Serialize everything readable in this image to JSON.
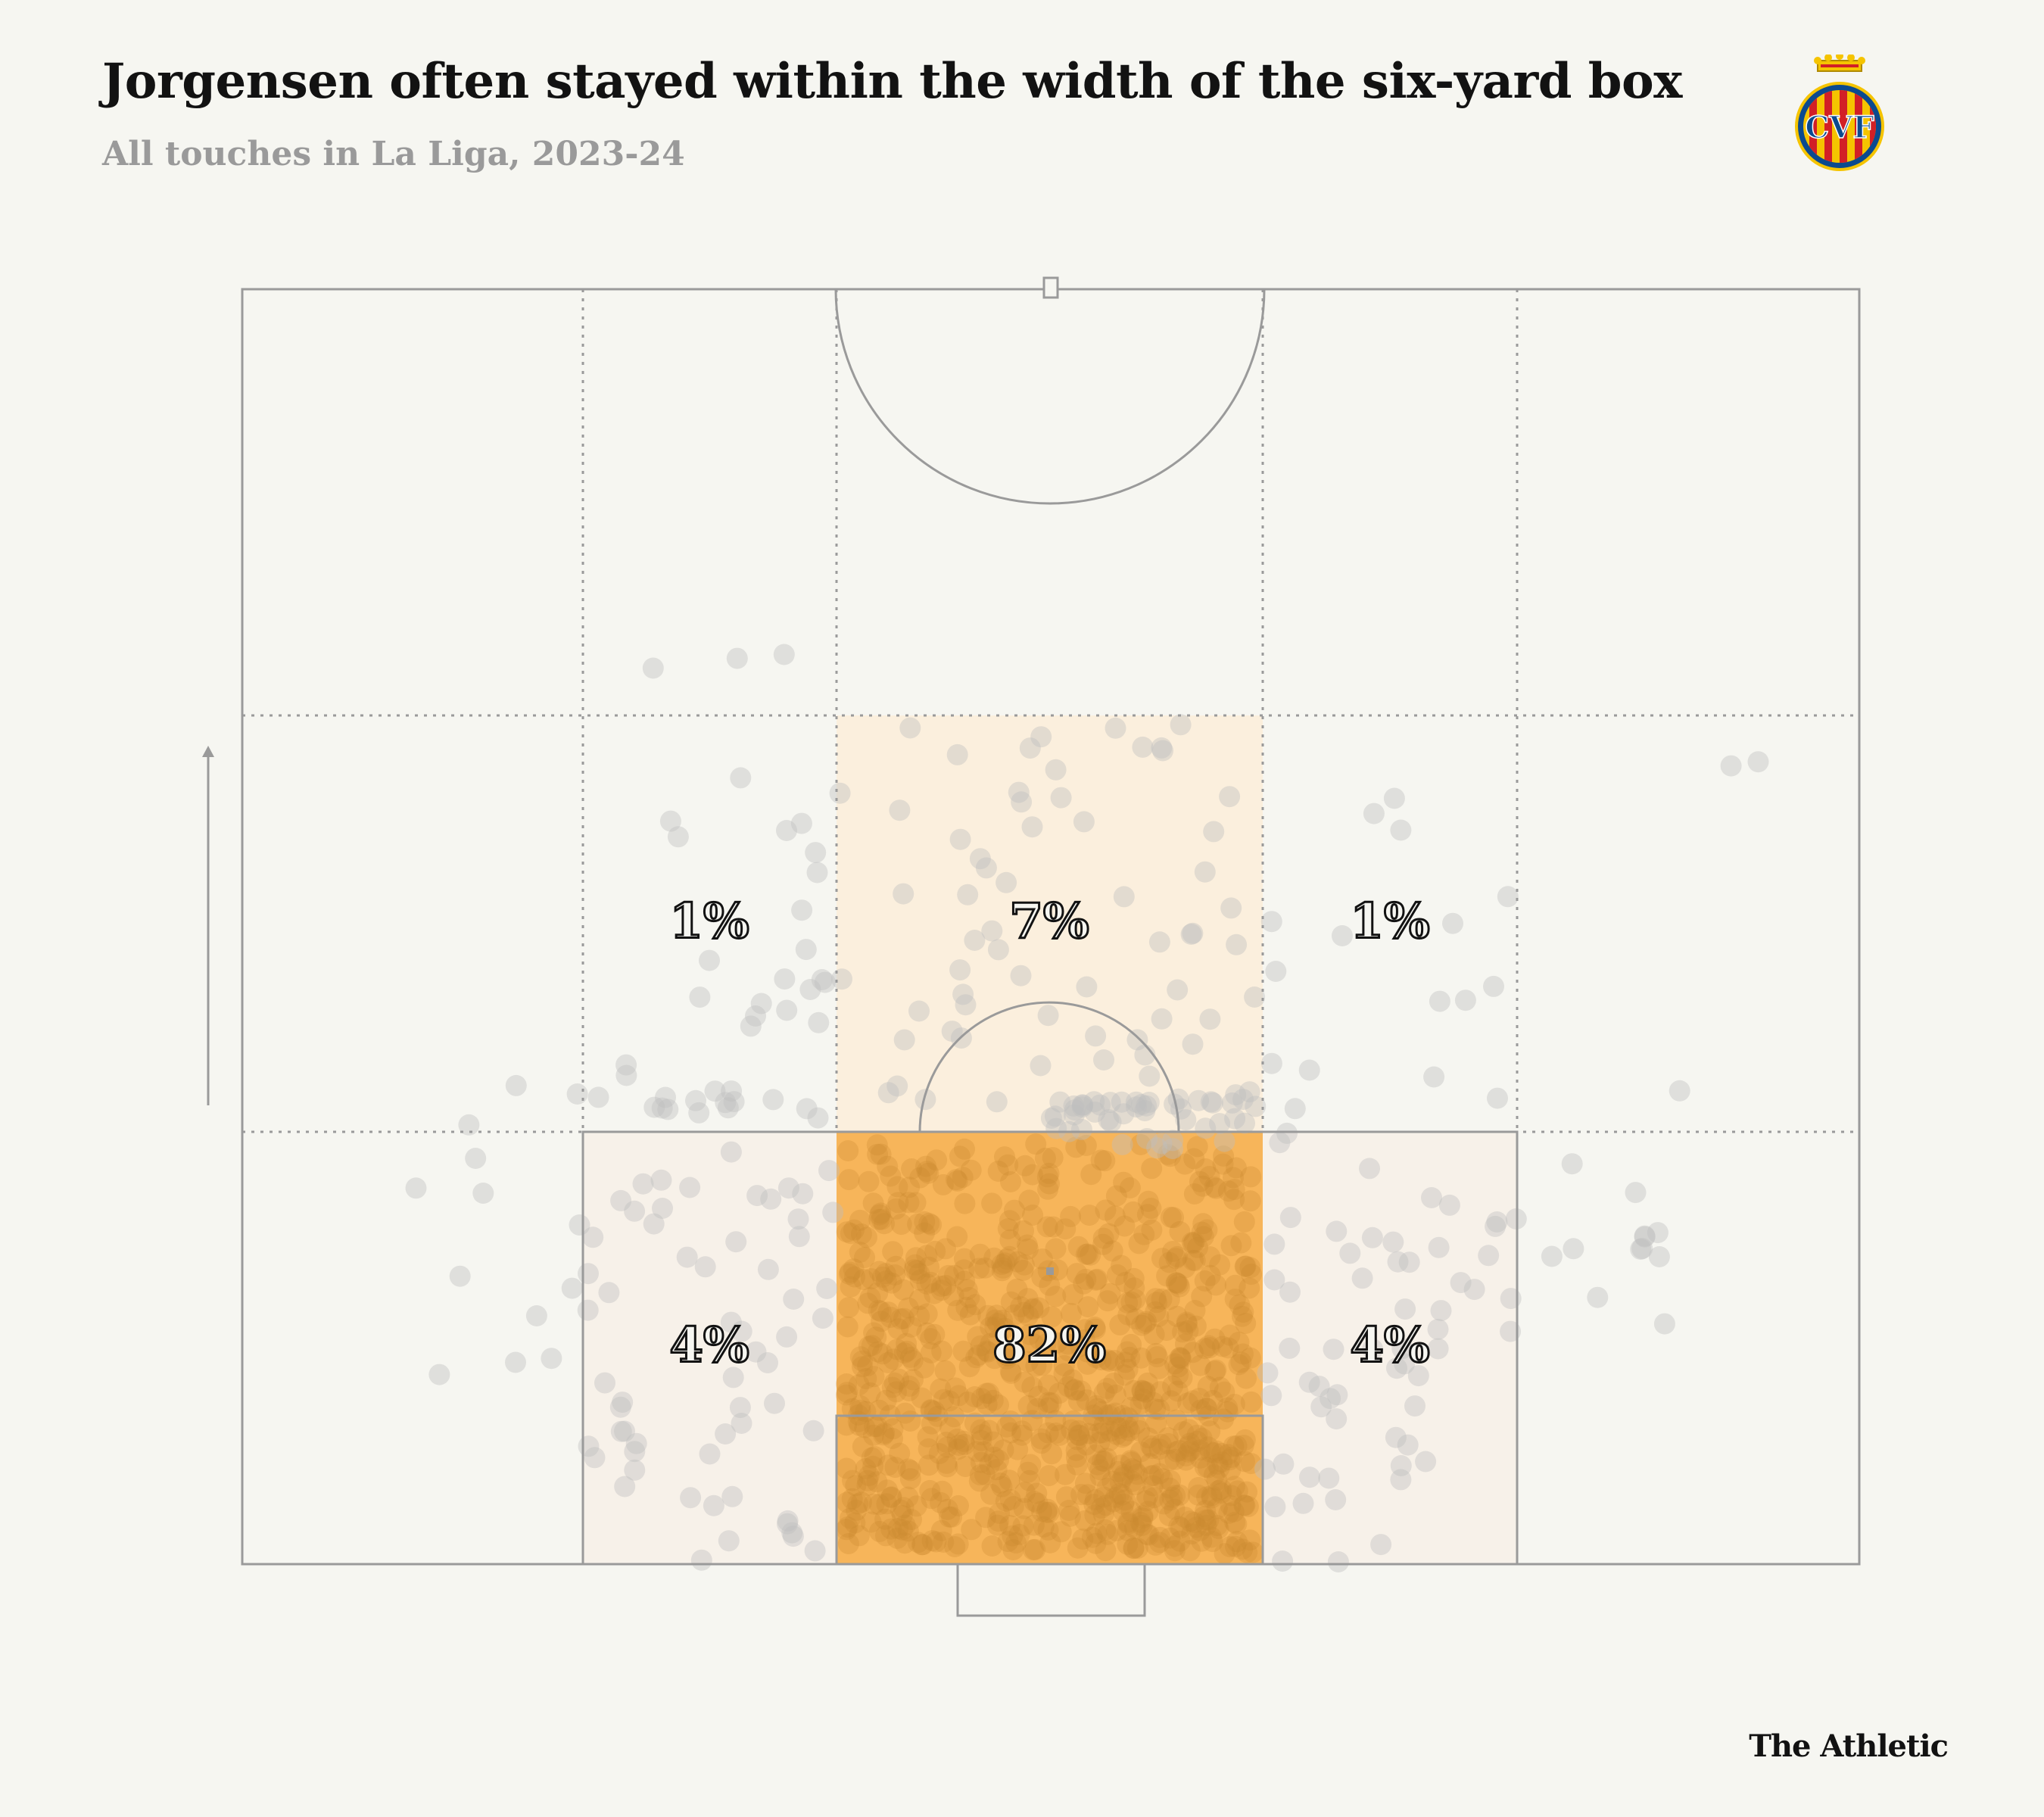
{
  "header": {
    "title": "Jorgensen often stayed within the width of the six-yard box",
    "subtitle": "All touches in La Liga, 2023-24"
  },
  "crest": {
    "name": "villarreal-crest",
    "letters": "CVF",
    "colors": [
      "#f5c400",
      "#0b4a8f",
      "#d21f26"
    ]
  },
  "footer": {
    "brand": "The Athletic"
  },
  "colors": {
    "background": "#f6f6f1",
    "lines": "#9a9a9a",
    "highlight": "#f7b55a",
    "light_zone": "#fbefdd",
    "lighter_zone": "#f7f1e9",
    "touch_dot": "#bdbdbd",
    "dense_dot": "#c98a2f"
  },
  "chart_data": {
    "type": "heatmap",
    "title": "Jorgensen often stayed within the width of the six-yard box",
    "subtitle": "All touches in La Liga, 2023-24",
    "attack_direction": "up",
    "zones": [
      {
        "id": "left-mid",
        "label": "1%",
        "value": 1
      },
      {
        "id": "center-mid",
        "label": "7%",
        "value": 7
      },
      {
        "id": "right-mid",
        "label": "1%",
        "value": 1
      },
      {
        "id": "left-box",
        "label": "4%",
        "value": 4
      },
      {
        "id": "center-box",
        "label": "82%",
        "value": 82
      },
      {
        "id": "right-box",
        "label": "4%",
        "value": 4
      }
    ]
  }
}
